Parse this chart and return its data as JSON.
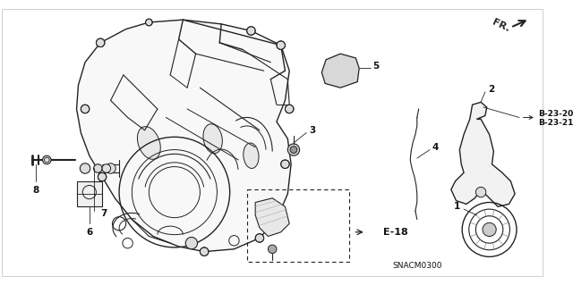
{
  "background_color": "#ffffff",
  "fig_width": 6.4,
  "fig_height": 3.19,
  "dpi": 100,
  "e18_text": "E-18",
  "snacm_text": "SNACM0300",
  "fr_text": "FR.",
  "b2320": "B-23-20",
  "b2321": "B-23-21",
  "label_color": "#111111",
  "line_color": "#222222",
  "case_fill": "#f8f8f8",
  "part_fill": "#eeeeee"
}
